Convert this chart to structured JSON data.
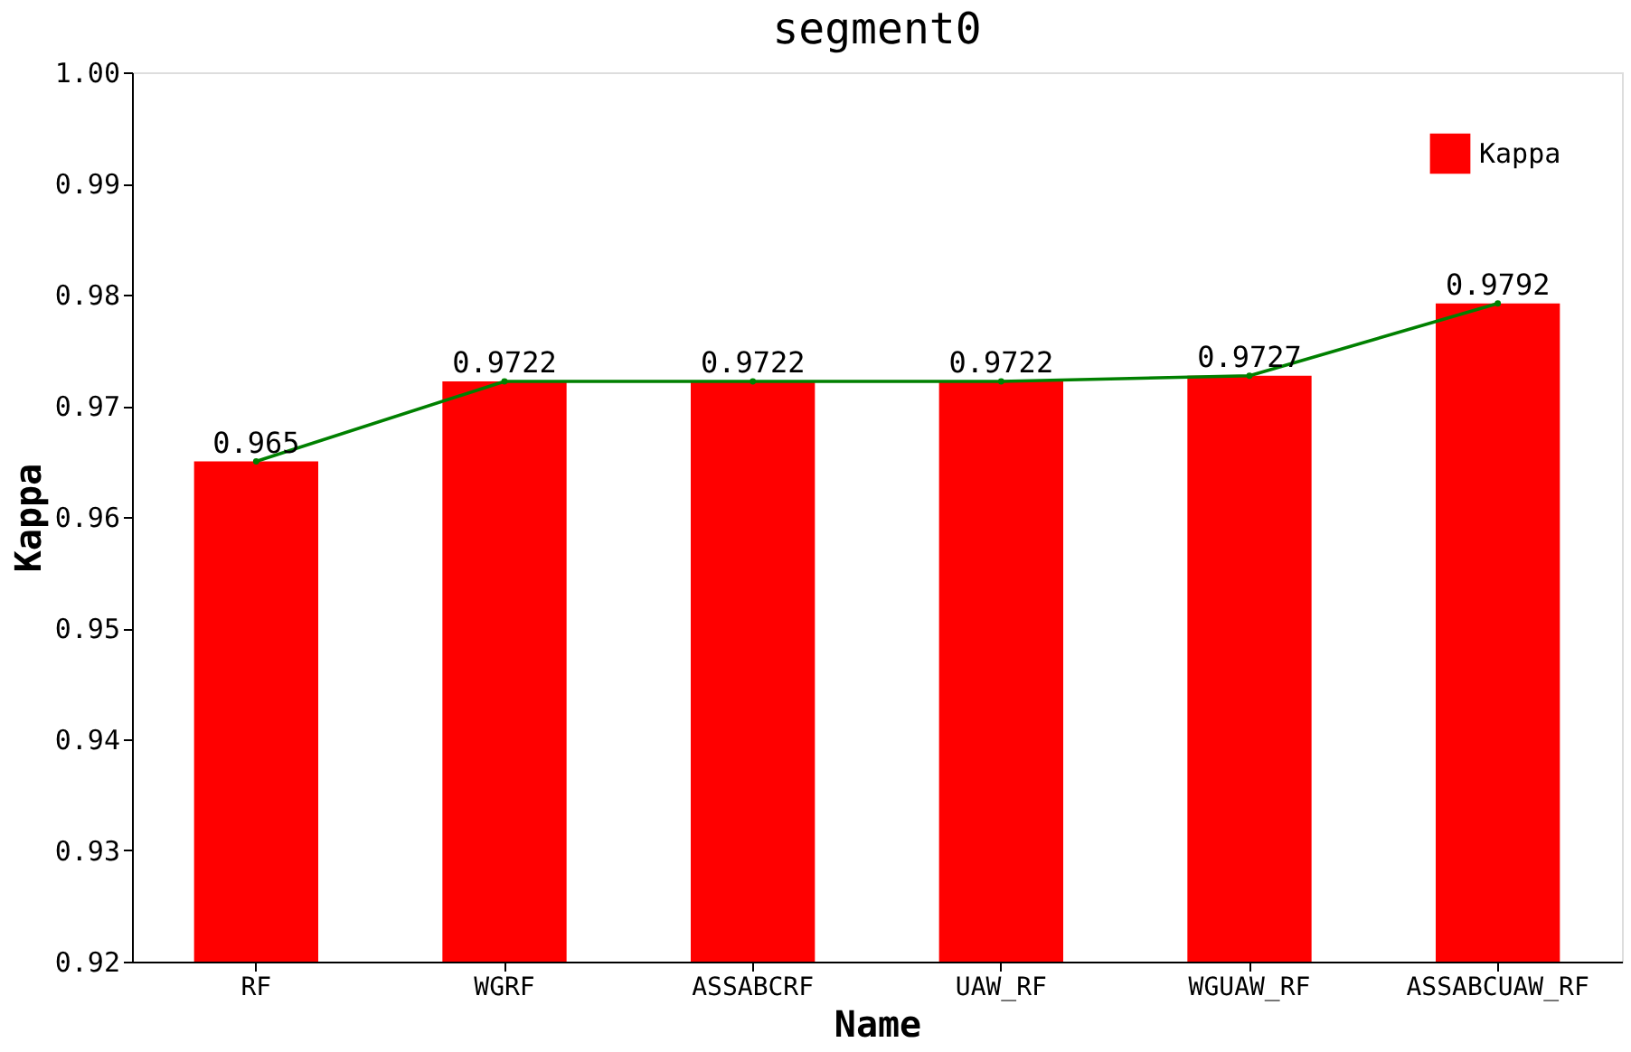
{
  "chart_data": {
    "type": "bar",
    "title": "segment0",
    "xlabel": "Name",
    "ylabel": "Kappa",
    "categories": [
      "RF",
      "WGRF",
      "ASSABCRF",
      "UAW_RF",
      "WGUAW_RF",
      "ASSABCUAW_RF"
    ],
    "series": [
      {
        "name": "Kappa",
        "color": "#ff0000",
        "values": [
          0.965,
          0.9722,
          0.9722,
          0.9722,
          0.9727,
          0.9792
        ],
        "value_labels": [
          "0.965",
          "0.9722",
          "0.9722",
          "0.9722",
          "0.9727",
          "0.9792"
        ]
      },
      {
        "type": "line",
        "color": "#008000",
        "marker": "circle",
        "values": [
          0.965,
          0.9722,
          0.9722,
          0.9722,
          0.9727,
          0.9792
        ]
      }
    ],
    "ylim": [
      0.92,
      1.0
    ],
    "yticks": [
      0.92,
      0.93,
      0.94,
      0.95,
      0.96,
      0.97,
      0.98,
      0.99,
      {
        "value": 1.0,
        "label": "1.00"
      }
    ],
    "legend": "top right",
    "grid": false
  }
}
